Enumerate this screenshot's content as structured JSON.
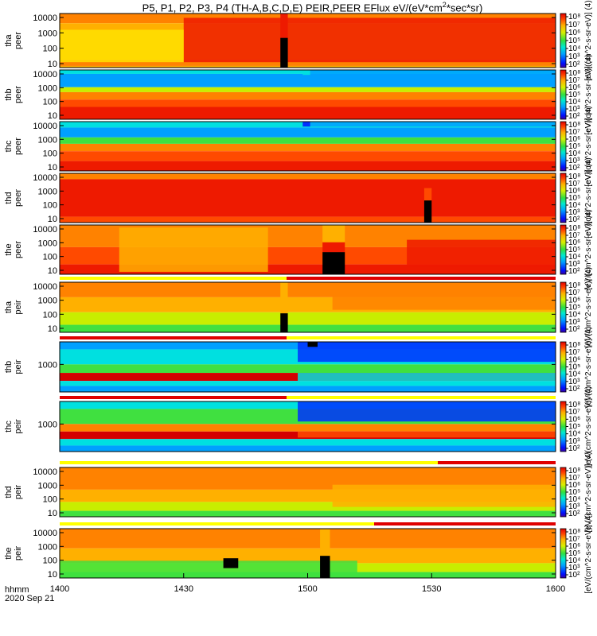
{
  "title": {
    "prefix": "P5, P1, P2, P3, P4 (TH-A,B,C,D,E) PEIR,PEER EFlux eV/(eV*cm",
    "exp": "2",
    "suffix": "*sec*sr)"
  },
  "x_axis": {
    "ticks": [
      "1400",
      "1430",
      "1500",
      "1530",
      "1600"
    ],
    "label_line1": "hhmm",
    "label_line2": "2020 Sep 21"
  },
  "colorbar": {
    "tick_labels": [
      "10⁸",
      "10⁷",
      "10⁶",
      "10⁵",
      "10⁴",
      "10³",
      "10²"
    ],
    "label_peer": "[eV/(cm^2-s-sr-eV)] (4)",
    "label_peir": "[eV/(cm^2-s-sr-eV)] (4)"
  },
  "chart_data": [
    {
      "type": "heatmap",
      "name_line1": "tha",
      "name_line2": "peer",
      "y_ticks": [
        "10000",
        "1000",
        "100",
        "10"
      ],
      "x_range": [
        "1400",
        "1600"
      ],
      "log_y": true
    },
    {
      "type": "heatmap",
      "name_line1": "thb",
      "name_line2": "peer",
      "y_ticks": [
        "10000",
        "1000",
        "100",
        "10"
      ],
      "x_range": [
        "1400",
        "1600"
      ],
      "log_y": true
    },
    {
      "type": "heatmap",
      "name_line1": "thc",
      "name_line2": "peer",
      "y_ticks": [
        "10000",
        "1000",
        "100",
        "10"
      ],
      "x_range": [
        "1400",
        "1600"
      ],
      "log_y": true
    },
    {
      "type": "heatmap",
      "name_line1": "thd",
      "name_line2": "peer",
      "y_ticks": [
        "10000",
        "1000",
        "100",
        "10"
      ],
      "x_range": [
        "1400",
        "1600"
      ],
      "log_y": true
    },
    {
      "type": "heatmap",
      "name_line1": "the",
      "name_line2": "peer",
      "y_ticks": [
        "10000",
        "1000",
        "100",
        "10"
      ],
      "x_range": [
        "1400",
        "1600"
      ],
      "log_y": true
    },
    {
      "type": "heatmap",
      "name_line1": "tha",
      "name_line2": "peir",
      "y_ticks": [
        "10000",
        "1000",
        "100",
        "10"
      ],
      "x_range": [
        "1400",
        "1600"
      ],
      "log_y": true
    },
    {
      "type": "heatmap",
      "name_line1": "thb",
      "name_line2": "peir",
      "y_ticks": [
        "1000"
      ],
      "x_range": [
        "1400",
        "1600"
      ],
      "log_y": true
    },
    {
      "type": "heatmap",
      "name_line1": "thc",
      "name_line2": "peir",
      "y_ticks": [
        "1000"
      ],
      "x_range": [
        "1400",
        "1600"
      ],
      "log_y": true
    },
    {
      "type": "heatmap",
      "name_line1": "thd",
      "name_line2": "peir",
      "y_ticks": [
        "10000",
        "1000",
        "100",
        "10"
      ],
      "x_range": [
        "1400",
        "1600"
      ],
      "log_y": true
    },
    {
      "type": "heatmap",
      "name_line1": "the",
      "name_line2": "peir",
      "y_ticks": [
        "10000",
        "1000",
        "100",
        "10"
      ],
      "x_range": [
        "1400",
        "1600"
      ],
      "log_y": true
    }
  ]
}
